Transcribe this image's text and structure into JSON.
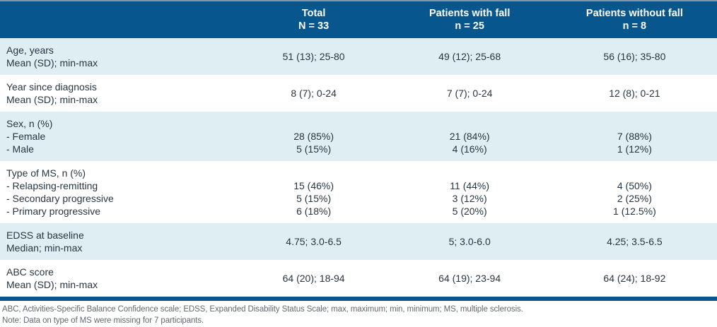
{
  "colors": {
    "header_bg": "#08568e",
    "row_alt_bg": "#dfeef3",
    "row_bg": "#ffffff",
    "header_text": "#ffffff",
    "body_text": "#273640",
    "footnote_text": "#63686d",
    "top_border": "#8296aa"
  },
  "chart_data": {
    "type": "table",
    "columns": [
      "",
      "Total N = 33",
      "Patients with fall n = 25",
      "Patients without fall n = 8"
    ]
  },
  "header": {
    "columns": [
      {
        "title": "Total",
        "n": "N = 33"
      },
      {
        "title": "Patients with fall",
        "n": "n = 25"
      },
      {
        "title": "Patients without fall",
        "n": "n = 8"
      }
    ]
  },
  "rows": [
    {
      "label_lines": [
        "Age, years",
        "Mean (SD); min-max"
      ],
      "values": [
        "51 (13); 25-80",
        "49 (12); 25-68",
        "56 (16); 35-80"
      ]
    },
    {
      "label_lines": [
        "Year since diagnosis",
        "Mean (SD); min-max"
      ],
      "values": [
        "8 (7); 0-24",
        "7 (7); 0-24",
        "12 (8); 0-21"
      ]
    },
    {
      "label_lines": [
        "Sex, n (%)",
        "- Female",
        "- Male"
      ],
      "values": [
        [
          "28 (85%)",
          "5 (15%)"
        ],
        [
          "21 (84%)",
          "4 (16%)"
        ],
        [
          "7 (88%)",
          "1 (12%)"
        ]
      ]
    },
    {
      "label_lines": [
        "Type of MS, n (%)",
        "- Relapsing-remitting",
        "- Secondary progressive",
        "- Primary progressive"
      ],
      "values": [
        [
          "15 (46%)",
          "5 (15%)",
          "6 (18%)"
        ],
        [
          "11 (44%)",
          "3 (12%)",
          "5 (20%)"
        ],
        [
          "4 (50%)",
          "2 (25%)",
          "1 (12.5%)"
        ]
      ]
    },
    {
      "label_lines": [
        "EDSS at baseline",
        "Median; min-max"
      ],
      "values": [
        "4.75; 3.0-6.5",
        "5; 3.0-6.0",
        "4.25; 3.5-6.5"
      ]
    },
    {
      "label_lines": [
        "ABC score",
        "Mean (SD); min-max"
      ],
      "values": [
        "64 (20); 18-94",
        "64 (19); 23-94",
        "64 (24); 18-92"
      ]
    }
  ],
  "footnotes": [
    "ABC, Activities-Specific Balance Confidence scale; EDSS, Expanded Disability Status Scale; max, maximum; min, minimum; MS, multiple sclerosis.",
    "Note: Data on type of MS were missing for 7 participants."
  ]
}
